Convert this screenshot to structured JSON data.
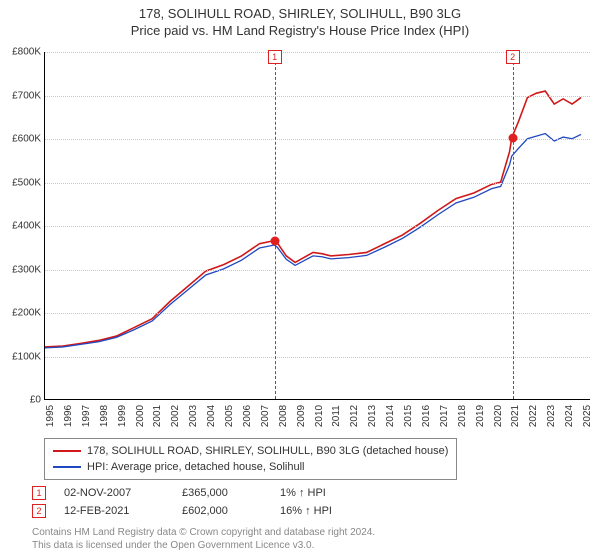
{
  "title": {
    "main": "178, SOLIHULL ROAD, SHIRLEY, SOLIHULL, B90 3LG",
    "sub": "Price paid vs. HM Land Registry's House Price Index (HPI)"
  },
  "chart": {
    "type": "line",
    "background_color": "#ffffff",
    "grid_color": "#c8c8c8",
    "y": {
      "min": 0,
      "max": 800000,
      "step": 100000,
      "labels": [
        "£0",
        "£100K",
        "£200K",
        "£300K",
        "£400K",
        "£500K",
        "£600K",
        "£700K",
        "£800K"
      ],
      "fontsize": 10
    },
    "x": {
      "min": 1995,
      "max": 2025.5,
      "ticks": [
        1995,
        1996,
        1997,
        1998,
        1999,
        2000,
        2001,
        2002,
        2003,
        2004,
        2005,
        2006,
        2007,
        2008,
        2009,
        2010,
        2011,
        2012,
        2013,
        2014,
        2015,
        2016,
        2017,
        2018,
        2019,
        2020,
        2021,
        2022,
        2023,
        2024,
        2025
      ],
      "fontsize": 10
    },
    "series": [
      {
        "name": "178, SOLIHULL ROAD, SHIRLEY, SOLIHULL, B90 3LG (detached house)",
        "color": "#d01818",
        "line_width": 1.6,
        "points": [
          [
            1995,
            120000
          ],
          [
            1996,
            122000
          ],
          [
            1997,
            128000
          ],
          [
            1998,
            135000
          ],
          [
            1999,
            145000
          ],
          [
            2000,
            165000
          ],
          [
            2001,
            185000
          ],
          [
            2002,
            225000
          ],
          [
            2003,
            260000
          ],
          [
            2004,
            295000
          ],
          [
            2005,
            310000
          ],
          [
            2006,
            330000
          ],
          [
            2007,
            358000
          ],
          [
            2007.83,
            365000
          ],
          [
            2008,
            360000
          ],
          [
            2008.5,
            330000
          ],
          [
            2009,
            315000
          ],
          [
            2010,
            338000
          ],
          [
            2010.5,
            335000
          ],
          [
            2011,
            330000
          ],
          [
            2012,
            333000
          ],
          [
            2013,
            338000
          ],
          [
            2014,
            358000
          ],
          [
            2015,
            378000
          ],
          [
            2016,
            405000
          ],
          [
            2017,
            435000
          ],
          [
            2018,
            462000
          ],
          [
            2019,
            475000
          ],
          [
            2020,
            495000
          ],
          [
            2020.5,
            500000
          ],
          [
            2021,
            570000
          ],
          [
            2021.12,
            602000
          ],
          [
            2021.5,
            640000
          ],
          [
            2022,
            695000
          ],
          [
            2022.5,
            705000
          ],
          [
            2023,
            710000
          ],
          [
            2023.5,
            680000
          ],
          [
            2024,
            692000
          ],
          [
            2024.5,
            680000
          ],
          [
            2025,
            695000
          ]
        ]
      },
      {
        "name": "HPI: Average price, detached house, Solihull",
        "color": "#2048c0",
        "line_width": 1.3,
        "points": [
          [
            1995,
            118000
          ],
          [
            1996,
            120000
          ],
          [
            1997,
            126000
          ],
          [
            1998,
            132000
          ],
          [
            1999,
            142000
          ],
          [
            2000,
            160000
          ],
          [
            2001,
            180000
          ],
          [
            2002,
            218000
          ],
          [
            2003,
            252000
          ],
          [
            2004,
            286000
          ],
          [
            2005,
            300000
          ],
          [
            2006,
            320000
          ],
          [
            2007,
            348000
          ],
          [
            2007.83,
            355000
          ],
          [
            2008,
            350000
          ],
          [
            2008.5,
            322000
          ],
          [
            2009,
            308000
          ],
          [
            2010,
            330000
          ],
          [
            2010.5,
            328000
          ],
          [
            2011,
            323000
          ],
          [
            2012,
            326000
          ],
          [
            2013,
            331000
          ],
          [
            2014,
            350000
          ],
          [
            2015,
            370000
          ],
          [
            2016,
            396000
          ],
          [
            2017,
            425000
          ],
          [
            2018,
            452000
          ],
          [
            2019,
            465000
          ],
          [
            2020,
            485000
          ],
          [
            2020.5,
            490000
          ],
          [
            2021,
            540000
          ],
          [
            2021.12,
            560000
          ],
          [
            2021.5,
            578000
          ],
          [
            2022,
            600000
          ],
          [
            2022.5,
            606000
          ],
          [
            2023,
            612000
          ],
          [
            2023.5,
            595000
          ],
          [
            2024,
            604000
          ],
          [
            2024.5,
            600000
          ],
          [
            2025,
            610000
          ]
        ]
      }
    ],
    "events": [
      {
        "idx": "1",
        "year": 2007.83,
        "price": 365000
      },
      {
        "idx": "2",
        "year": 2021.12,
        "price": 602000
      }
    ]
  },
  "legend": {
    "items": [
      {
        "color": "#d01818",
        "label": "178, SOLIHULL ROAD, SHIRLEY, SOLIHULL, B90 3LG (detached house)"
      },
      {
        "color": "#2048c0",
        "label": "HPI: Average price, detached house, Solihull"
      }
    ]
  },
  "sales": [
    {
      "idx": "1",
      "date": "02-NOV-2007",
      "price": "£365,000",
      "pct": "1% ↑ HPI"
    },
    {
      "idx": "2",
      "date": "12-FEB-2021",
      "price": "£602,000",
      "pct": "16% ↑ HPI"
    }
  ],
  "footer": {
    "line1": "Contains HM Land Registry data © Crown copyright and database right 2024.",
    "line2": "This data is licensed under the Open Government Licence v3.0."
  }
}
